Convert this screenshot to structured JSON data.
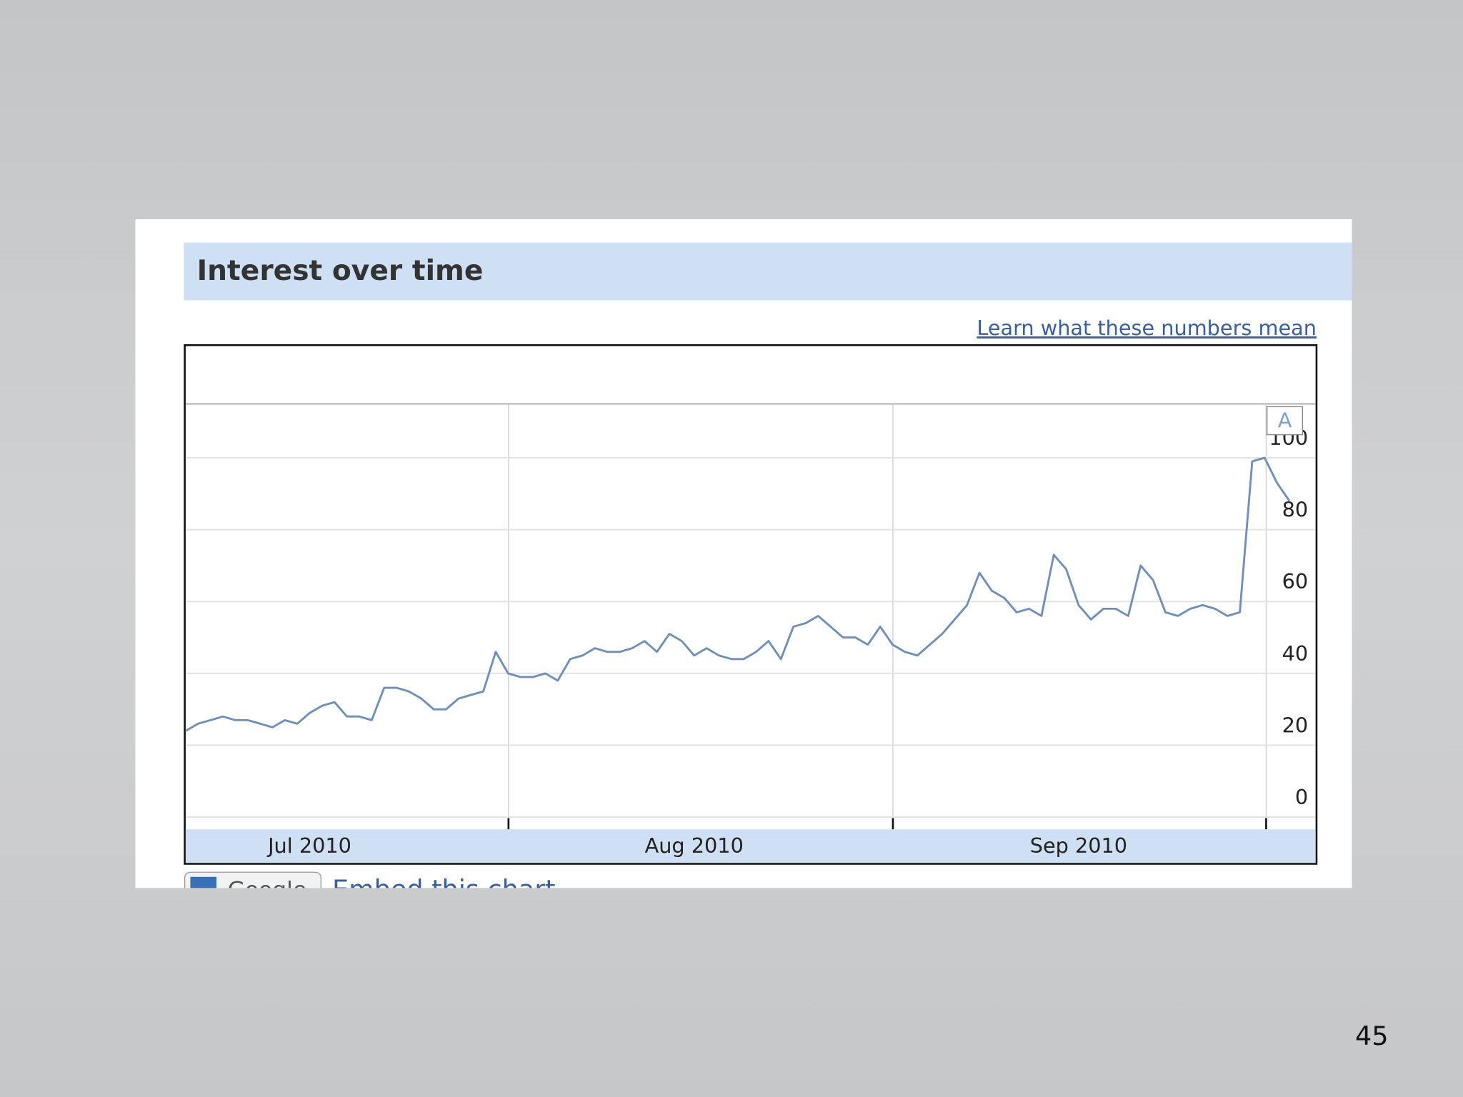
{
  "chart_data": {
    "type": "line",
    "title": "Interest over time",
    "link": "Learn what these numbers mean",
    "annotation": "A",
    "categories": [
      null,
      null,
      null,
      null,
      null,
      null,
      null,
      null,
      null,
      null,
      "Jul 2010",
      null,
      null,
      null,
      null,
      null,
      null,
      null,
      null,
      null,
      null,
      null,
      null,
      null,
      null,
      null,
      null,
      null,
      null,
      null,
      null,
      null,
      null,
      null,
      null,
      null,
      null,
      null,
      null,
      null,
      null,
      "Aug 2010",
      null,
      null,
      null,
      null,
      null,
      null,
      null,
      null,
      null,
      null,
      null,
      null,
      null,
      null,
      null,
      null,
      null,
      null,
      null,
      null,
      null,
      null,
      null,
      null,
      null,
      null,
      null,
      null,
      null,
      null,
      "Sep 2010",
      null,
      null,
      null,
      null,
      null,
      null,
      null,
      null,
      null,
      null,
      null,
      null,
      null,
      null,
      null,
      null,
      null
    ],
    "values": [
      24,
      26,
      27,
      28,
      27,
      27,
      26,
      25,
      27,
      26,
      29,
      31,
      32,
      28,
      28,
      27,
      36,
      36,
      35,
      33,
      30,
      30,
      33,
      34,
      35,
      46,
      40,
      39,
      39,
      40,
      38,
      44,
      45,
      47,
      46,
      46,
      47,
      49,
      46,
      51,
      49,
      45,
      47,
      45,
      44,
      44,
      46,
      49,
      44,
      53,
      54,
      56,
      53,
      50,
      50,
      48,
      53,
      48,
      46,
      45,
      48,
      51,
      55,
      59,
      68,
      63,
      61,
      57,
      58,
      56,
      73,
      69,
      59,
      55,
      58,
      58,
      56,
      70,
      66,
      57,
      56,
      58,
      59,
      58,
      56,
      57,
      99,
      100,
      93,
      88
    ],
    "color": "#6f8fb8",
    "ylim": [
      0,
      115
    ],
    "yticks": [
      0,
      20,
      40,
      60,
      80,
      100
    ],
    "grid": true
  },
  "footer": {
    "button": "Google",
    "link": "Embed this chart"
  },
  "slide_number": "45"
}
